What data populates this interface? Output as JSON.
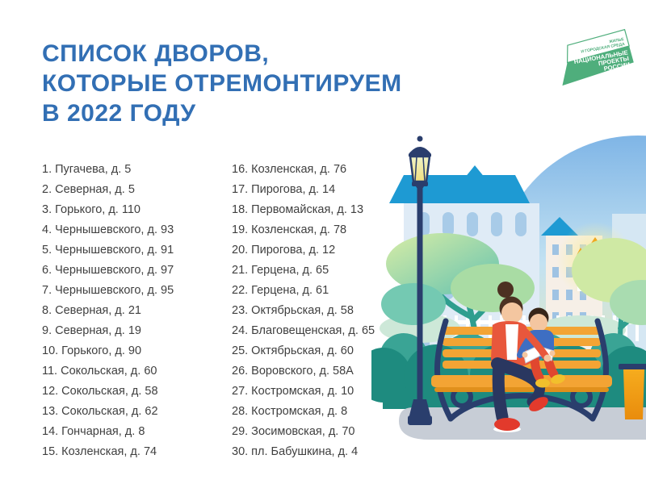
{
  "page": {
    "background": "#FFFFFF"
  },
  "title": {
    "lines": [
      "СПИСОК ДВОРОВ,",
      "КОТОРЫЕ ОТРЕМОНТИРУЕМ",
      "В 2022 ГОДУ"
    ],
    "color": "#326FB4"
  },
  "logo": {
    "program_lines": [
      "ЖИЛЬЕ",
      "И ГОРОДСКАЯ СРЕДА"
    ],
    "brand_lines": [
      "НАЦИОНАЛЬНЫЕ",
      "ПРОЕКТЫ",
      "РОССИИ"
    ],
    "green": "#4FAE7C"
  },
  "lists": {
    "text_color": "#3F3F3F",
    "left_items": [
      "1. Пугачева, д. 5",
      "2. Северная, д. 5",
      "3. Горького, д. 110",
      "4. Чернышевского, д. 93",
      "5. Чернышевского, д. 91",
      "6. Чернышевского, д. 97",
      "7. Чернышевского, д. 95",
      "8. Северная, д. 21",
      "9. Северная, д. 19",
      "10. Горького, д. 90",
      "11. Сокольская, д. 60",
      "12. Сокольская, д. 58",
      "13. Сокольская, д. 62",
      "14. Гончарная, д. 8",
      "15. Козленская, д. 74"
    ],
    "right_items": [
      "16. Козленская, д. 76",
      "17. Пирогова, д. 14",
      "18. Первомайская, д. 13",
      "19. Козленская, д. 78",
      "20. Пирогова, д. 12",
      "21. Герцена, д. 65",
      "22. Герцена, д. 61",
      "23. Октябрьская, д. 58",
      "24. Благовещенская, д. 65",
      "25. Октябрьская, д. 60",
      "26. Воровского, д. 58А",
      "27. Костромская, д. 10",
      "28. Костромская, д. 8",
      "29. Зосимовская, д. 70",
      "30. пл. Бабушкина, д. 4"
    ]
  },
  "illustration": {
    "scene": "Женщина с ребенком читают книгу на скамейке в парке",
    "colors": {
      "sky_top": "#7FB5E6",
      "sky_bottom": "#F4E9A2",
      "roof_blue": "#1E9AD3",
      "bench_yellow": "#F3A434",
      "frame_navy": "#2A3E6D",
      "tree_teal": "#2F9E8F",
      "bush_dark": "#1E8B7F",
      "cardigan_red": "#E8573C",
      "jeans_navy": "#2A3760",
      "boy_jacket_blue": "#3E6EC2",
      "boy_pants_red": "#E0472F",
      "dome_gold": "#F0A81E",
      "ground_gray": "#C7CDD6"
    }
  }
}
